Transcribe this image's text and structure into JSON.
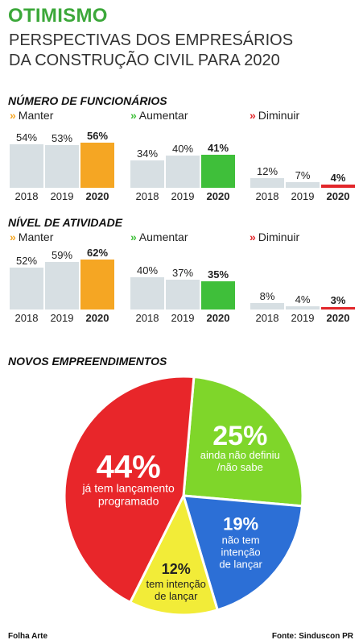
{
  "header": {
    "title": "OTIMISMO",
    "subtitle_line1": "PERSPECTIVAS DOS EMPRESÁRIOS",
    "subtitle_line2": "DA CONSTRUÇÃO CIVIL PARA 2020"
  },
  "legend": {
    "chevron": "»",
    "manter": "Manter",
    "aumentar": "Aumentar",
    "diminuir": "Diminuir",
    "colors": {
      "manter": "#f5a623",
      "aumentar": "#3fbf3a",
      "diminuir": "#e2262a"
    }
  },
  "colors": {
    "bar_past": "#d7dfe3",
    "title_green": "#3ca83a"
  },
  "chart_data": [
    {
      "type": "bar",
      "title": "NÚMERO DE FUNCIONÁRIOS",
      "categories": [
        "2018",
        "2019",
        "2020"
      ],
      "series": [
        {
          "name": "Manter",
          "values": [
            54,
            53,
            56
          ]
        },
        {
          "name": "Aumentar",
          "values": [
            34,
            40,
            41
          ]
        },
        {
          "name": "Diminuir",
          "values": [
            12,
            7,
            4
          ]
        }
      ],
      "value_suffix": "%"
    },
    {
      "type": "bar",
      "title": "NÍVEL DE ATIVIDADE",
      "categories": [
        "2018",
        "2019",
        "2020"
      ],
      "series": [
        {
          "name": "Manter",
          "values": [
            52,
            59,
            62
          ]
        },
        {
          "name": "Aumentar",
          "values": [
            40,
            37,
            35
          ]
        },
        {
          "name": "Diminuir",
          "values": [
            8,
            4,
            3
          ]
        }
      ],
      "value_suffix": "%"
    },
    {
      "type": "pie",
      "title": "NOVOS EMPREENDIMENTOS",
      "slices": [
        {
          "label": "já tem lançamento programado",
          "value": 44,
          "display": "44%",
          "lines": [
            "já tem lançamento",
            "programado"
          ],
          "color": "#e8262a"
        },
        {
          "label": "ainda não definiu /não sabe",
          "value": 25,
          "display": "25%",
          "lines": [
            "ainda não definiu",
            "/não sabe"
          ],
          "color": "#7fd62a"
        },
        {
          "label": "não tem intenção de lançar",
          "value": 19,
          "display": "19%",
          "lines": [
            "não tem",
            "intenção",
            "de lançar"
          ],
          "color": "#2c6fd6"
        },
        {
          "label": "tem intenção de lançar",
          "value": 12,
          "display": "12%",
          "lines": [
            "tem intenção",
            "de lançar"
          ],
          "color": "#f2ec38"
        }
      ]
    }
  ],
  "footer": {
    "left": "Folha Arte",
    "right": "Fonte: Sinduscon PR"
  }
}
